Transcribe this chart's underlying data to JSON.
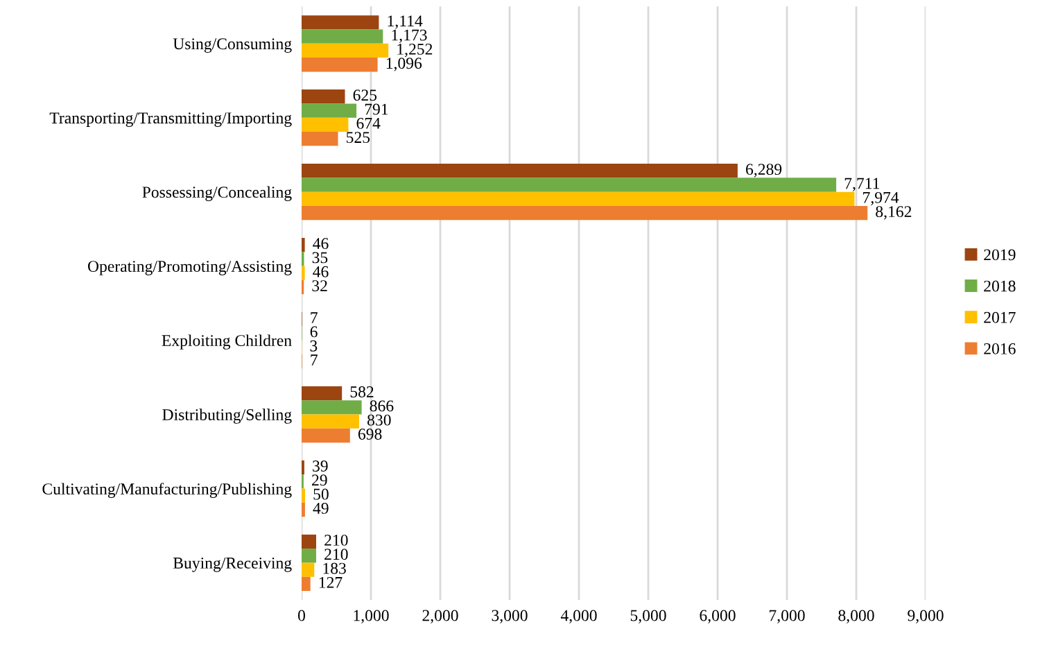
{
  "chart_data": {
    "type": "bar",
    "orientation": "horizontal",
    "categories": [
      "Using/Consuming",
      "Transporting/Transmitting/Importing",
      "Possessing/Concealing",
      "Operating/Promoting/Assisting",
      "Exploiting Children",
      "Distributing/Selling",
      "Cultivating/Manufacturing/Publishing",
      "Buying/Receiving"
    ],
    "series": [
      {
        "name": "2019",
        "color": "#9c4511",
        "values": [
          1114,
          625,
          6289,
          46,
          7,
          582,
          39,
          210
        ],
        "value_labels": [
          "1,114",
          "625",
          "6,289",
          "46",
          "7",
          "582",
          "39",
          "210"
        ]
      },
      {
        "name": "2018",
        "color": "#70ad47",
        "values": [
          1173,
          791,
          7711,
          35,
          6,
          866,
          29,
          210
        ],
        "value_labels": [
          "1,173",
          "791",
          "7,711",
          "35",
          "6",
          "866",
          "29",
          "210"
        ]
      },
      {
        "name": "2017",
        "color": "#ffc000",
        "values": [
          1252,
          674,
          7974,
          46,
          3,
          830,
          50,
          183
        ],
        "value_labels": [
          "1,252",
          "674",
          "7,974",
          "46",
          "3",
          "830",
          "50",
          "183"
        ]
      },
      {
        "name": "2016",
        "color": "#ed7d31",
        "values": [
          1096,
          525,
          8162,
          32,
          7,
          698,
          49,
          127
        ],
        "value_labels": [
          "1,096",
          "525",
          "8,162",
          "32",
          "7",
          "698",
          "49",
          "127"
        ]
      }
    ],
    "xlim": [
      0,
      9000
    ],
    "xticks": [
      0,
      {
        "value": 1000,
        "label": "1,000"
      },
      {
        "value": 2000,
        "label": "2,000"
      },
      {
        "value": 3000,
        "label": "3,000"
      },
      {
        "value": 4000,
        "label": "4,000"
      },
      {
        "value": 5000,
        "label": "5,000"
      },
      {
        "value": 6000,
        "label": "6,000"
      },
      {
        "value": 7000,
        "label": "7,000"
      },
      {
        "value": 8000,
        "label": "8,000"
      },
      {
        "value": 9000,
        "label": "9,000"
      }
    ],
    "grid": "x",
    "legend": "right"
  }
}
